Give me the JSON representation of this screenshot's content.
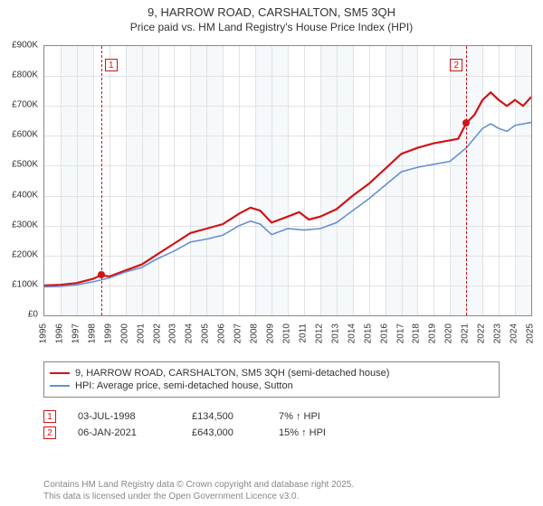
{
  "title": {
    "line1": "9, HARROW ROAD, CARSHALTON, SM5 3QH",
    "line2": "Price paid vs. HM Land Registry's House Price Index (HPI)",
    "fontsize_line1": 13,
    "fontsize_line2": 12
  },
  "chart": {
    "type": "line",
    "background_color": "#ffffff",
    "band_color": "#f5f9fc",
    "grid_color": "#e2e2e2",
    "axis_color": "#888888",
    "label_fontsize": 10,
    "x": {
      "min": 1995,
      "max": 2025,
      "tick_step": 1,
      "bands_start": 1996,
      "band_width_years": 2,
      "labels": [
        "1995",
        "1996",
        "1997",
        "1998",
        "1999",
        "2000",
        "2001",
        "2002",
        "2003",
        "2004",
        "2005",
        "2006",
        "2007",
        "2008",
        "2009",
        "2010",
        "2011",
        "2012",
        "2013",
        "2014",
        "2015",
        "2016",
        "2017",
        "2018",
        "2019",
        "2020",
        "2021",
        "2022",
        "2023",
        "2024",
        "2025"
      ]
    },
    "y": {
      "min": 0,
      "max": 900000,
      "tick_step": 100000,
      "labels": [
        "£0",
        "£100K",
        "£200K",
        "£300K",
        "£400K",
        "£500K",
        "£600K",
        "£700K",
        "£800K",
        "£900K"
      ]
    },
    "series": [
      {
        "name": "price_paid",
        "label": "9, HARROW ROAD, CARSHALTON, SM5 3QH (semi-detached house)",
        "color": "#d01515",
        "width": 2.2,
        "points": [
          [
            1995.0,
            100000
          ],
          [
            1996.0,
            102000
          ],
          [
            1997.0,
            108000
          ],
          [
            1998.0,
            122000
          ],
          [
            1998.5,
            134500
          ],
          [
            1999.0,
            130000
          ],
          [
            2000.0,
            150000
          ],
          [
            2001.0,
            170000
          ],
          [
            2002.0,
            205000
          ],
          [
            2003.0,
            240000
          ],
          [
            2004.0,
            275000
          ],
          [
            2005.0,
            290000
          ],
          [
            2006.0,
            305000
          ],
          [
            2007.0,
            340000
          ],
          [
            2007.7,
            360000
          ],
          [
            2008.3,
            350000
          ],
          [
            2009.0,
            310000
          ],
          [
            2010.0,
            330000
          ],
          [
            2010.7,
            345000
          ],
          [
            2011.3,
            320000
          ],
          [
            2012.0,
            330000
          ],
          [
            2013.0,
            355000
          ],
          [
            2014.0,
            400000
          ],
          [
            2015.0,
            440000
          ],
          [
            2016.0,
            490000
          ],
          [
            2017.0,
            540000
          ],
          [
            2018.0,
            560000
          ],
          [
            2019.0,
            575000
          ],
          [
            2020.0,
            585000
          ],
          [
            2020.5,
            590000
          ],
          [
            2021.0,
            643000
          ],
          [
            2021.5,
            670000
          ],
          [
            2022.0,
            720000
          ],
          [
            2022.5,
            745000
          ],
          [
            2023.0,
            720000
          ],
          [
            2023.5,
            700000
          ],
          [
            2024.0,
            720000
          ],
          [
            2024.5,
            700000
          ],
          [
            2025.0,
            730000
          ]
        ]
      },
      {
        "name": "hpi",
        "label": "HPI: Average price, semi-detached house, Sutton",
        "color": "#6a8fd0",
        "width": 1.6,
        "points": [
          [
            1995.0,
            95000
          ],
          [
            1996.0,
            97000
          ],
          [
            1997.0,
            102000
          ],
          [
            1998.0,
            112000
          ],
          [
            1999.0,
            125000
          ],
          [
            2000.0,
            145000
          ],
          [
            2001.0,
            160000
          ],
          [
            2002.0,
            190000
          ],
          [
            2003.0,
            215000
          ],
          [
            2004.0,
            245000
          ],
          [
            2005.0,
            255000
          ],
          [
            2006.0,
            268000
          ],
          [
            2007.0,
            300000
          ],
          [
            2007.7,
            315000
          ],
          [
            2008.3,
            305000
          ],
          [
            2009.0,
            270000
          ],
          [
            2010.0,
            290000
          ],
          [
            2011.0,
            285000
          ],
          [
            2012.0,
            290000
          ],
          [
            2013.0,
            310000
          ],
          [
            2014.0,
            350000
          ],
          [
            2015.0,
            390000
          ],
          [
            2016.0,
            435000
          ],
          [
            2017.0,
            480000
          ],
          [
            2018.0,
            495000
          ],
          [
            2019.0,
            505000
          ],
          [
            2020.0,
            515000
          ],
          [
            2021.0,
            560000
          ],
          [
            2022.0,
            625000
          ],
          [
            2022.5,
            640000
          ],
          [
            2023.0,
            625000
          ],
          [
            2023.5,
            615000
          ],
          [
            2024.0,
            635000
          ],
          [
            2025.0,
            645000
          ]
        ]
      }
    ],
    "markers": [
      {
        "idx": "1",
        "x": 1998.5,
        "y": 134500
      },
      {
        "idx": "2",
        "x": 2021.0,
        "y": 643000
      }
    ]
  },
  "legend": {
    "border_color": "#888888",
    "items": [
      {
        "color": "#d01515",
        "label": "9, HARROW ROAD, CARSHALTON, SM5 3QH (semi-detached house)"
      },
      {
        "color": "#6a8fd0",
        "label": "HPI: Average price, semi-detached house, Sutton"
      }
    ]
  },
  "transactions": [
    {
      "idx": "1",
      "date": "03-JUL-1998",
      "price": "£134,500",
      "hpi": "7% ↑ HPI"
    },
    {
      "idx": "2",
      "date": "06-JAN-2021",
      "price": "£643,000",
      "hpi": "15% ↑ HPI"
    }
  ],
  "footer": {
    "line1": "Contains HM Land Registry data © Crown copyright and database right 2025.",
    "line2": "This data is licensed under the Open Government Licence v3.0."
  }
}
